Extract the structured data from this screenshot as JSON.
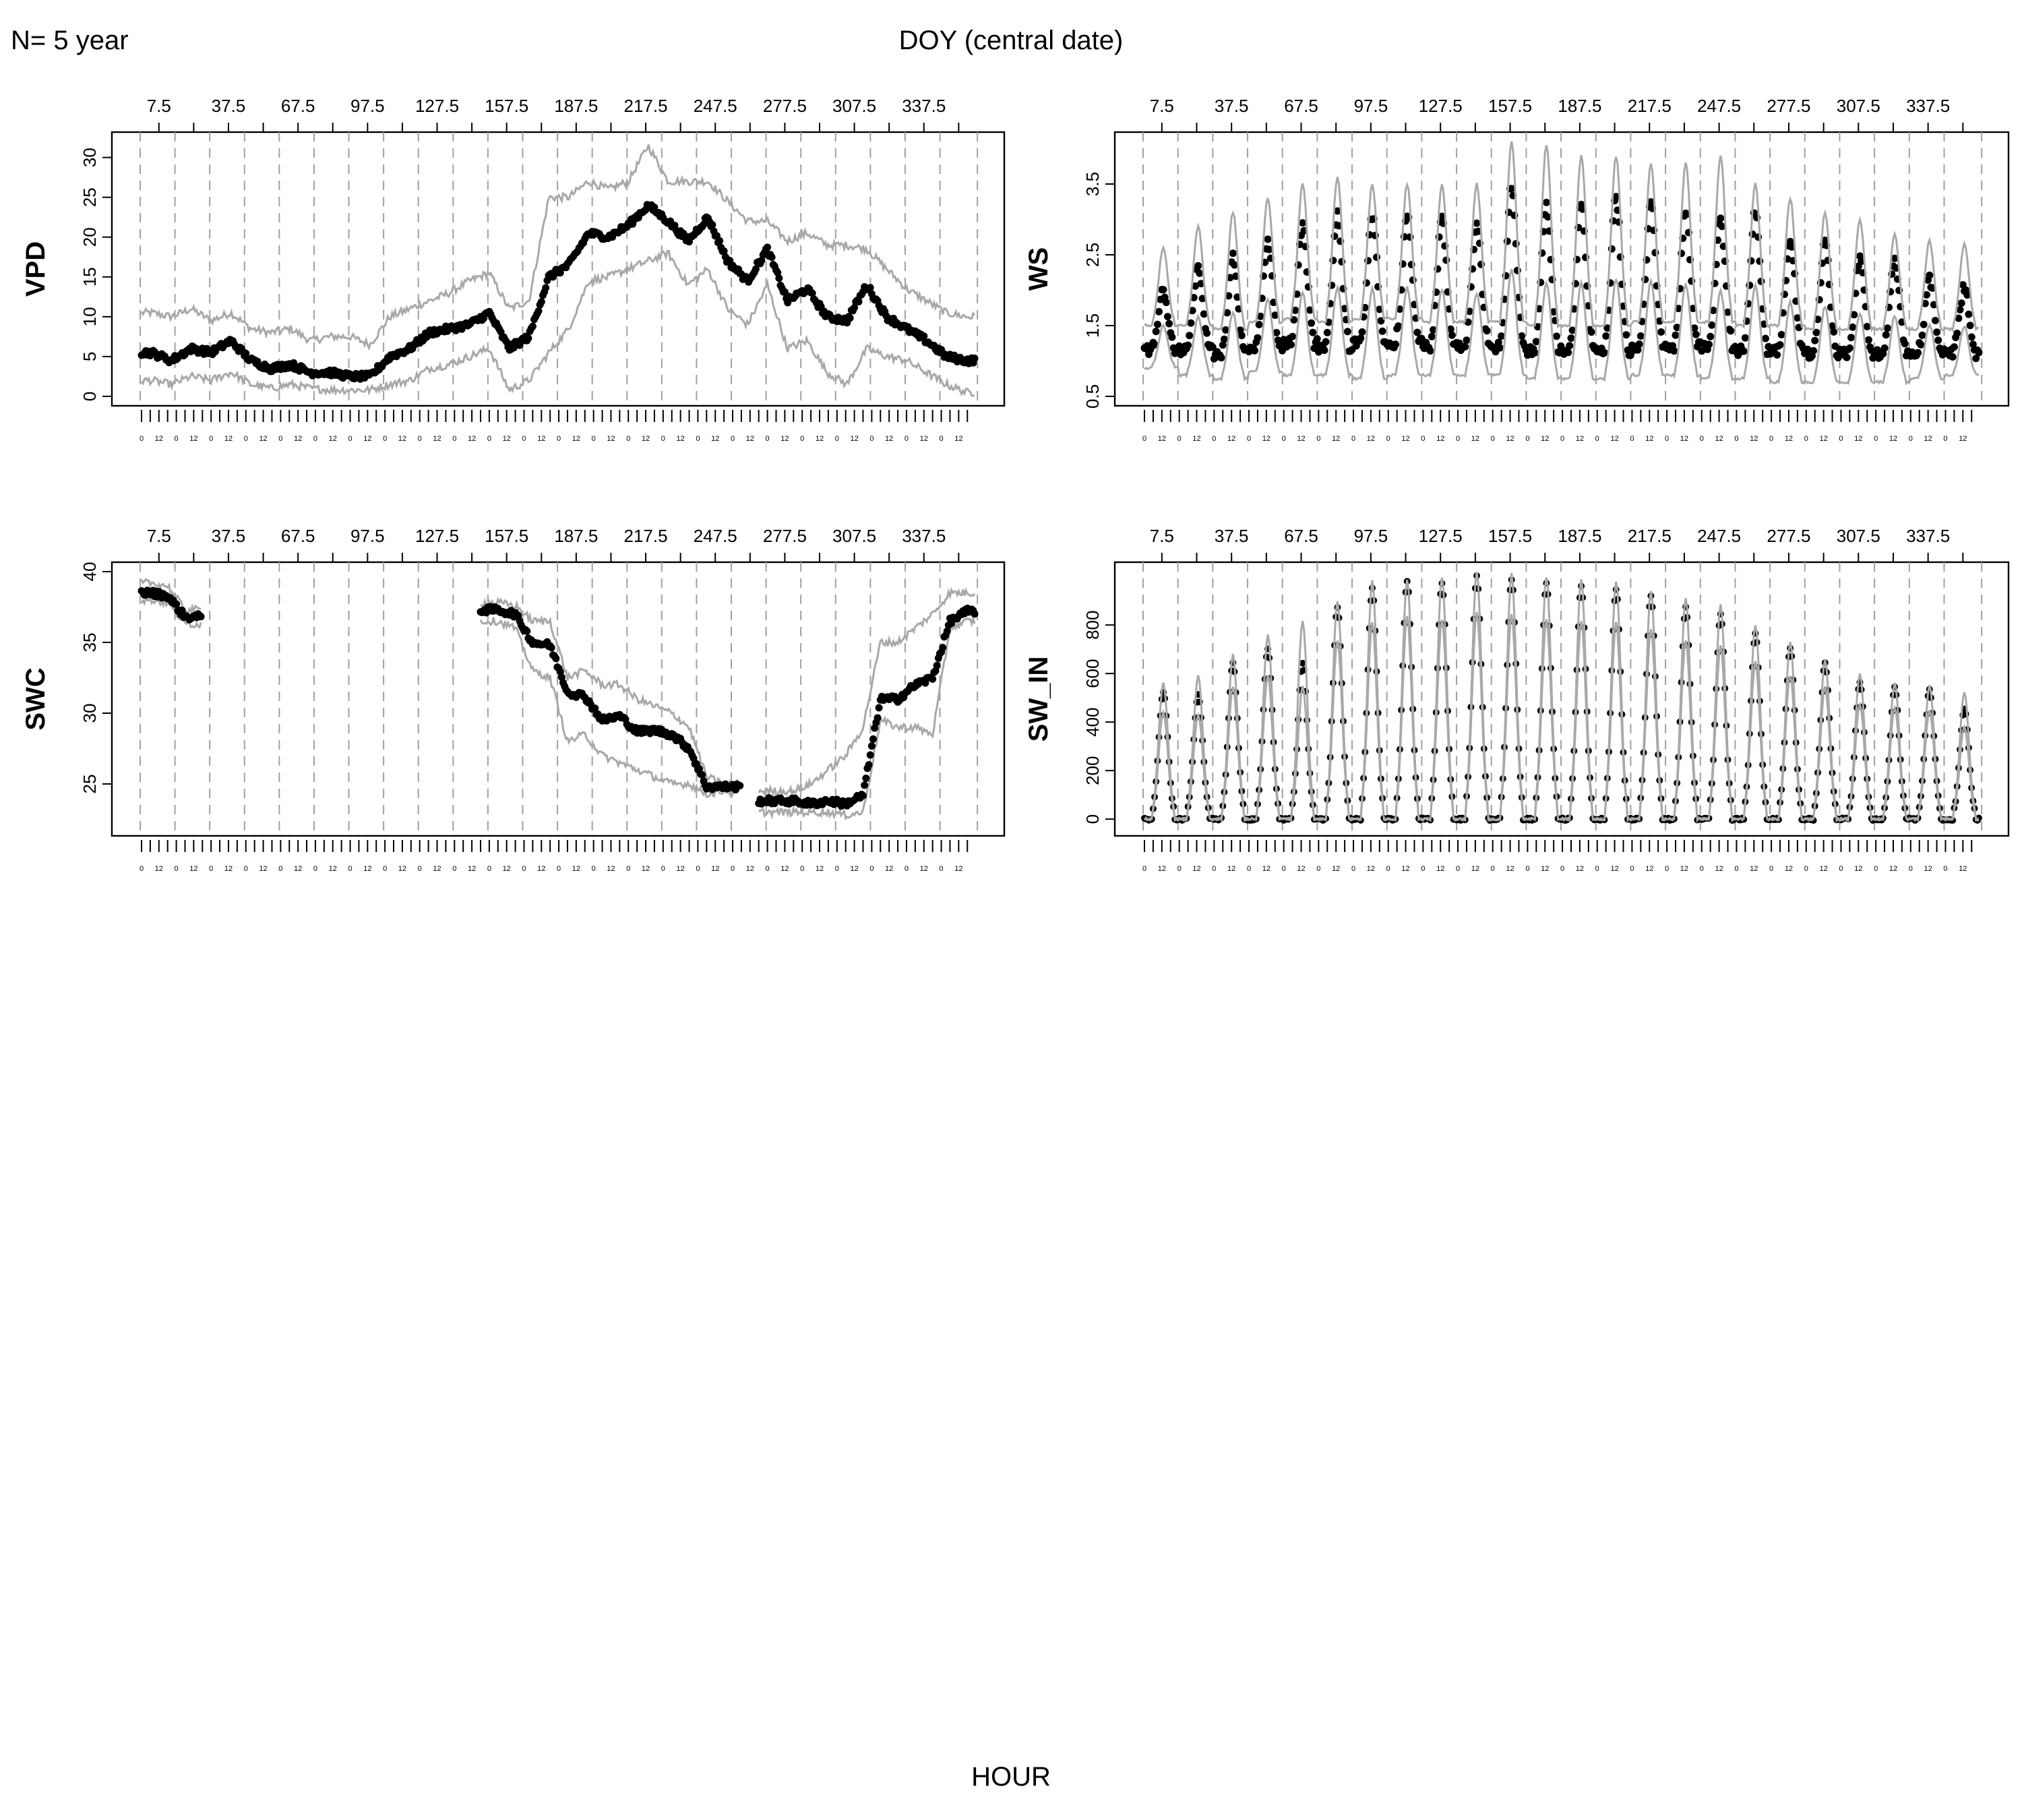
{
  "header": {
    "left_text": "N= 5 year",
    "center_text": "DOY (central date)",
    "bottom_text": "HOUR"
  },
  "colors": {
    "points": "#000000",
    "band": "#a8a8a8",
    "gridline": "#a0a0a0",
    "axis": "#000000"
  },
  "chart_data": [
    {
      "type": "scatter",
      "title": "",
      "ylabel": "VPD",
      "xlabel": "HOUR",
      "top_axis_label": "DOY (central date)",
      "doy_ticks": [
        "7.5",
        "37.5",
        "67.5",
        "97.5",
        "127.5",
        "157.5",
        "187.5",
        "217.5",
        "247.5",
        "277.5",
        "307.5",
        "337.5"
      ],
      "hour_ticks": [
        "0",
        "12"
      ],
      "ylim": [
        0,
        32
      ],
      "yticks": [
        0,
        5,
        10,
        15,
        20,
        25,
        30
      ],
      "grid": "vertical dashed at each 15-day window boundary",
      "windows": 24,
      "series": [
        {
          "style": "points",
          "window_means": [
            5.5,
            4.5,
            6.0,
            5.5,
            7.0,
            4.5,
            3.5,
            4.0,
            3.0,
            3.0,
            2.5,
            2.5,
            5.0,
            6.0,
            8.0,
            8.5,
            9.0,
            10.5,
            6.0,
            7.5,
            15.0,
            16.5,
            20.5,
            20.0,
            21.5,
            24.0,
            22.0,
            19.5,
            22.5,
            17.0,
            14.5,
            18.5,
            12.0,
            13.5,
            10.0,
            9.5,
            14.0,
            10.0,
            8.5,
            7.0,
            5.0,
            4.5
          ]
        },
        {
          "style": "band-upper",
          "window_means": [
            10.5,
            10.0,
            11.0,
            9.5,
            10.5,
            8.5,
            8.0,
            8.5,
            7.0,
            7.5,
            7.5,
            6.5,
            10.0,
            11.0,
            12.0,
            13.0,
            14.5,
            15.5,
            11.0,
            12.0,
            25.0,
            25.0,
            27.0,
            26.0,
            27.0,
            31.5,
            27.0,
            27.0,
            27.0,
            24.5,
            22.0,
            22.0,
            19.5,
            20.5,
            19.0,
            19.0,
            18.5,
            16.0,
            13.5,
            12.0,
            10.5,
            10.0
          ]
        },
        {
          "style": "band-lower",
          "window_means": [
            2.0,
            1.5,
            2.5,
            2.0,
            3.0,
            1.5,
            1.0,
            1.5,
            1.0,
            0.8,
            0.8,
            0.8,
            1.5,
            2.0,
            3.5,
            4.0,
            5.0,
            6.0,
            0.8,
            2.0,
            5.5,
            8.5,
            14.5,
            15.0,
            16.0,
            17.0,
            18.0,
            14.0,
            16.0,
            11.0,
            9.0,
            14.0,
            6.0,
            7.0,
            3.0,
            1.5,
            6.0,
            5.0,
            4.5,
            3.0,
            1.5,
            0.5
          ]
        }
      ]
    },
    {
      "type": "scatter",
      "title": "",
      "ylabel": "WS",
      "xlabel": "HOUR",
      "top_axis_label": "DOY (central date)",
      "doy_ticks": [
        "7.5",
        "37.5",
        "67.5",
        "97.5",
        "127.5",
        "157.5",
        "187.5",
        "217.5",
        "247.5",
        "277.5",
        "307.5",
        "337.5"
      ],
      "hour_ticks": [
        "0",
        "12"
      ],
      "ylim": [
        0.5,
        4.1
      ],
      "yticks": [
        0.5,
        1.5,
        2.5,
        3.5
      ],
      "grid": "vertical dashed at each 15-day window boundary",
      "windows": 24,
      "daily_cycle": {
        "night_mean": [
          1.15,
          1.15,
          1.1,
          1.2,
          1.25,
          1.2,
          1.25,
          1.25,
          1.2,
          1.2,
          1.2,
          1.15,
          1.15,
          1.15,
          1.2,
          1.2,
          1.2,
          1.15,
          1.15,
          1.1,
          1.1,
          1.1,
          1.1,
          1.1
        ],
        "afternoon_peak": [
          2.0,
          2.3,
          2.45,
          2.7,
          2.9,
          3.05,
          3.05,
          3.05,
          3.0,
          2.9,
          3.5,
          3.2,
          3.2,
          3.3,
          3.2,
          3.15,
          3.0,
          3.15,
          2.75,
          2.65,
          2.45,
          2.4,
          2.15,
          2.05
        ],
        "upper_peak": [
          2.6,
          2.9,
          3.1,
          3.3,
          3.5,
          3.6,
          3.5,
          3.5,
          3.5,
          3.5,
          4.1,
          4.05,
          3.9,
          3.9,
          3.8,
          3.8,
          3.9,
          3.5,
          3.3,
          3.1,
          3.0,
          2.8,
          2.7,
          2.65
        ],
        "lower_min": [
          0.9,
          0.8,
          0.75,
          0.85,
          0.8,
          0.8,
          0.75,
          0.8,
          0.8,
          0.8,
          0.8,
          0.75,
          0.75,
          0.75,
          0.8,
          0.8,
          0.75,
          0.75,
          0.7,
          0.7,
          0.7,
          0.7,
          0.75,
          0.8
        ]
      }
    },
    {
      "type": "scatter",
      "title": "",
      "ylabel": "SWC",
      "xlabel": "HOUR",
      "top_axis_label": "DOY (central date)",
      "doy_ticks": [
        "7.5",
        "37.5",
        "67.5",
        "97.5",
        "127.5",
        "157.5",
        "187.5",
        "217.5",
        "247.5",
        "277.5",
        "307.5",
        "337.5"
      ],
      "hour_ticks": [
        "0",
        "12"
      ],
      "ylim": [
        22.0,
        40.0
      ],
      "yticks": [
        25,
        30,
        35,
        40
      ],
      "grid": "vertical dashed at each 15-day window boundary",
      "windows": 24,
      "series": [
        {
          "style": "points",
          "window_means": [
            38.5,
            38.3,
            36.8,
            null,
            null,
            null,
            null,
            null,
            null,
            null,
            null,
            null,
            null,
            null,
            null,
            null,
            null,
            null,
            null,
            null,
            37.3,
            37.0,
            35.0,
            34.8,
            31.5,
            31.2,
            29.5,
            29.8,
            28.7,
            28.8,
            28.5,
            27.5,
            24.8,
            24.8,
            null,
            null,
            23.8,
            23.8,
            23.6,
            23.8,
            23.6,
            24.2,
            31.0,
            31.0,
            32.0,
            32.5,
            36.5,
            37.2
          ]
        },
        {
          "style": "band-upper",
          "window_means": [
            39.2,
            39.0,
            37.3,
            null,
            null,
            null,
            null,
            null,
            null,
            null,
            null,
            null,
            null,
            null,
            null,
            null,
            null,
            null,
            null,
            null,
            37.8,
            37.6,
            36.5,
            36.5,
            32.5,
            33.0,
            32.0,
            32.0,
            31.0,
            30.5,
            30.0,
            29.0,
            25.5,
            25.0,
            null,
            null,
            24.5,
            24.5,
            25.0,
            26.0,
            27.0,
            29.0,
            35.0,
            35.0,
            36.0,
            37.0,
            38.5,
            38.5
          ]
        },
        {
          "style": "band-lower",
          "window_means": [
            38.0,
            37.8,
            36.3,
            null,
            null,
            null,
            null,
            null,
            null,
            null,
            null,
            null,
            null,
            null,
            null,
            null,
            null,
            null,
            null,
            null,
            36.5,
            36.0,
            33.0,
            32.5,
            28.0,
            28.5,
            27.0,
            26.5,
            26.0,
            25.5,
            25.0,
            25.0,
            24.3,
            24.5,
            null,
            null,
            23.0,
            23.0,
            23.0,
            23.0,
            22.8,
            23.0,
            29.5,
            29.0,
            29.0,
            28.5,
            36.0,
            36.5
          ]
        }
      ]
    },
    {
      "type": "scatter",
      "title": "",
      "ylabel": "SW_IN",
      "xlabel": "HOUR",
      "top_axis_label": "DOY (central date)",
      "doy_ticks": [
        "7.5",
        "37.5",
        "67.5",
        "97.5",
        "127.5",
        "157.5",
        "187.5",
        "217.5",
        "247.5",
        "277.5",
        "307.5",
        "337.5"
      ],
      "hour_ticks": [
        "0",
        "12"
      ],
      "ylim": [
        -30,
        1020
      ],
      "yticks": [
        0,
        200,
        400,
        600,
        800
      ],
      "grid": "vertical dashed at each 15-day window boundary",
      "windows": 24,
      "daily_cycle": {
        "night_mean": [
          0,
          0,
          0,
          0,
          0,
          0,
          0,
          0,
          0,
          0,
          0,
          0,
          0,
          0,
          0,
          0,
          0,
          0,
          0,
          0,
          0,
          0,
          0,
          0
        ],
        "afternoon_peak": [
          520,
          510,
          640,
          700,
          640,
          870,
          950,
          980,
          970,
          1000,
          990,
          970,
          960,
          950,
          920,
          870,
          840,
          760,
          700,
          640,
          560,
          540,
          530,
          450
        ],
        "upper_peak": [
          560,
          590,
          680,
          760,
          820,
          900,
          980,
          990,
          1000,
          1020,
          1010,
          1000,
          990,
          980,
          940,
          910,
          880,
          800,
          730,
          660,
          600,
          560,
          550,
          520
        ],
        "lower_min": [
          0,
          0,
          0,
          0,
          0,
          0,
          0,
          0,
          0,
          0,
          0,
          0,
          0,
          0,
          0,
          0,
          0,
          0,
          0,
          0,
          0,
          0,
          0,
          0
        ]
      }
    }
  ]
}
